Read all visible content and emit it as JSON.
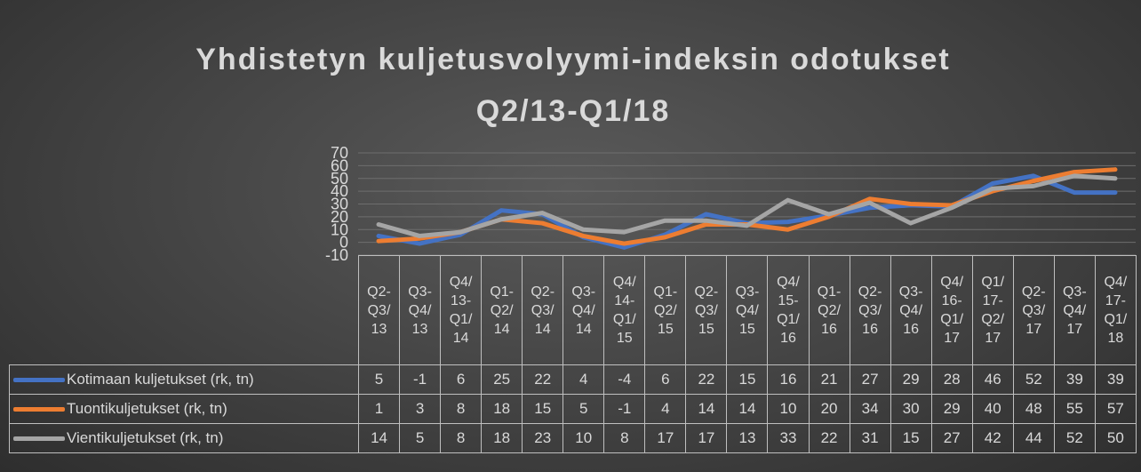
{
  "chart_data": {
    "type": "line",
    "title": "Yhdistetyn kuljetusvolyymi-indeksin odotukset Q2/13-Q1/18",
    "categories": [
      "Q2-Q3/13",
      "Q3-Q4/13",
      "Q4/13-Q1/14",
      "Q1-Q2/14",
      "Q2-Q3/14",
      "Q3-Q4/14",
      "Q4/14-Q1/15",
      "Q1-Q2/15",
      "Q2-Q3/15",
      "Q3-Q4/15",
      "Q4/15-Q1/16",
      "Q1-Q2/16",
      "Q2-Q3/16",
      "Q3-Q4/16",
      "Q4/16-Q1/17",
      "Q1/17-Q2/17",
      "Q2-Q3/17",
      "Q3-Q4/17",
      "Q4/17-Q1/18"
    ],
    "series": [
      {
        "name": "Kotimaan kuljetukset (rk, tn)",
        "color": "#4472c4",
        "values": [
          5,
          -1,
          6,
          25,
          22,
          4,
          -4,
          6,
          22,
          15,
          16,
          21,
          27,
          29,
          28,
          46,
          52,
          39,
          39
        ]
      },
      {
        "name": "Tuontikuljetukset (rk, tn)",
        "color": "#ed7d31",
        "values": [
          1,
          3,
          8,
          18,
          15,
          5,
          -1,
          4,
          14,
          14,
          10,
          20,
          34,
          30,
          29,
          40,
          48,
          55,
          57
        ]
      },
      {
        "name": "Vientikuljetukset (rk, tn)",
        "color": "#a5a5a5",
        "values": [
          14,
          5,
          8,
          18,
          23,
          10,
          8,
          17,
          17,
          13,
          33,
          22,
          31,
          15,
          27,
          42,
          44,
          52,
          50
        ]
      }
    ],
    "ylim": [
      -10,
      70
    ],
    "yticks": [
      -10,
      0,
      10,
      20,
      30,
      40,
      50,
      60,
      70
    ],
    "grid": true
  }
}
